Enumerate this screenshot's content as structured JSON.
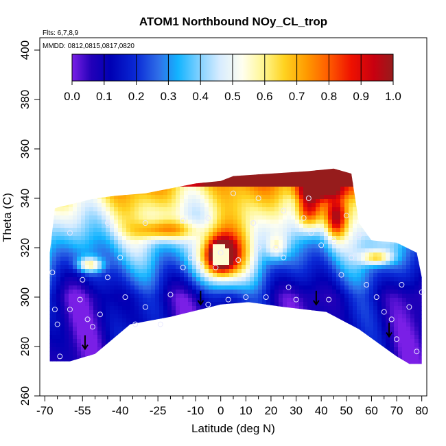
{
  "chart_data": {
    "type": "heatmap",
    "title": "ATOM1 Northbound NOy_CL_trop",
    "flights_text": "Flts: 6,7,8,9",
    "dates_text": "MMDD: 0812,0815,0817,0820",
    "xlabel": "Latitude (deg N)",
    "ylabel": "Theta (C)",
    "xlim": [
      -72,
      82
    ],
    "ylim": [
      260,
      405
    ],
    "x_ticks": [
      -70,
      -55,
      -40,
      -25,
      -10,
      0,
      10,
      20,
      30,
      40,
      50,
      60,
      70,
      80
    ],
    "x_minor_ticks": [
      -65,
      -60,
      -50,
      -45,
      -35,
      -30,
      -20,
      -15,
      -5,
      5,
      15,
      25,
      35,
      45,
      55,
      65,
      75
    ],
    "y_ticks": [
      260,
      280,
      300,
      320,
      340,
      360,
      380,
      400
    ],
    "colorbar": {
      "min": 0.0,
      "max": 1.0,
      "labels": [
        "0.0",
        "0.1",
        "0.2",
        "0.3",
        "0.4",
        "0.5",
        "0.6",
        "0.7",
        "0.8",
        "0.9",
        "1.0"
      ],
      "stops": [
        [
          0.0,
          "#7a1fe6"
        ],
        [
          0.06,
          "#2200b8"
        ],
        [
          0.12,
          "#0000b4"
        ],
        [
          0.2,
          "#0a2ad6"
        ],
        [
          0.27,
          "#2f6fe8"
        ],
        [
          0.33,
          "#13b4ff"
        ],
        [
          0.4,
          "#86d2ff"
        ],
        [
          0.46,
          "#d7ecff"
        ],
        [
          0.53,
          "#fffff0"
        ],
        [
          0.6,
          "#fff58a"
        ],
        [
          0.66,
          "#ffd321"
        ],
        [
          0.73,
          "#ff9a00"
        ],
        [
          0.8,
          "#ff5a00"
        ],
        [
          0.87,
          "#ee1100"
        ],
        [
          0.94,
          "#c80010"
        ],
        [
          1.0,
          "#961c1c"
        ]
      ]
    },
    "lower_boundary": [
      [
        -68,
        274
      ],
      [
        -60,
        274
      ],
      [
        -50,
        277
      ],
      [
        -43,
        283
      ],
      [
        -36,
        289
      ],
      [
        -20,
        292
      ],
      [
        -12,
        294
      ],
      [
        0,
        297
      ],
      [
        11,
        298
      ],
      [
        25,
        296
      ],
      [
        42,
        294
      ],
      [
        55,
        287
      ],
      [
        70,
        276
      ],
      [
        75,
        273
      ],
      [
        80,
        273
      ]
    ],
    "arrows": [
      {
        "lat": -54,
        "theta": 279
      },
      {
        "lat": -8,
        "theta": 297
      },
      {
        "lat": 38,
        "theta": 297
      },
      {
        "lat": 67,
        "theta": 284
      }
    ],
    "sample_points": [
      [
        -66,
        295
      ],
      [
        -65,
        289
      ],
      [
        -67,
        310
      ],
      [
        -64,
        276
      ],
      [
        -60,
        295
      ],
      [
        -56,
        299
      ],
      [
        -55,
        307
      ],
      [
        -53,
        291
      ],
      [
        -51,
        288
      ],
      [
        -48,
        293
      ],
      [
        -45,
        308
      ],
      [
        -40,
        316
      ],
      [
        -38,
        300
      ],
      [
        -34,
        289
      ],
      [
        -30,
        296
      ],
      [
        -24,
        289
      ],
      [
        -20,
        301
      ],
      [
        -15,
        312
      ],
      [
        -12,
        316
      ],
      [
        -8,
        313
      ],
      [
        -5,
        297
      ],
      [
        -2,
        312
      ],
      [
        0,
        318
      ],
      [
        3,
        299
      ],
      [
        7,
        315
      ],
      [
        10,
        300
      ],
      [
        13,
        330
      ],
      [
        15,
        320
      ],
      [
        18,
        300
      ],
      [
        22,
        320
      ],
      [
        25,
        316
      ],
      [
        27,
        304
      ],
      [
        30,
        299
      ],
      [
        33,
        332
      ],
      [
        36,
        326
      ],
      [
        40,
        321
      ],
      [
        43,
        299
      ],
      [
        45,
        323
      ],
      [
        48,
        309
      ],
      [
        52,
        316
      ],
      [
        55,
        325
      ],
      [
        58,
        305
      ],
      [
        62,
        300
      ],
      [
        65,
        294
      ],
      [
        68,
        291
      ],
      [
        70,
        283
      ],
      [
        72,
        305
      ],
      [
        75,
        296
      ],
      [
        78,
        278
      ],
      [
        80,
        302
      ],
      [
        -60,
        326
      ],
      [
        -45,
        330
      ],
      [
        -30,
        330
      ],
      [
        -15,
        331
      ],
      [
        -5,
        332
      ],
      [
        5,
        342
      ],
      [
        15,
        340
      ],
      [
        25,
        335
      ],
      [
        35,
        340
      ],
      [
        50,
        333
      ]
    ],
    "anomalies": [
      {
        "lat": 0,
        "theta": 316,
        "sx": 10,
        "sy": 12,
        "amp": 0.6
      },
      {
        "lat": 0,
        "theta": 317,
        "sx": 5,
        "sy": 6,
        "amp": 0.5
      },
      {
        "lat": -22,
        "theta": 327,
        "sx": 12,
        "sy": 4,
        "amp": 0.3
      },
      {
        "lat": -52,
        "theta": 313,
        "sx": 5,
        "sy": 3,
        "amp": 0.35
      },
      {
        "lat": 35,
        "theta": 336,
        "sx": 5,
        "sy": 9,
        "amp": 0.45
      },
      {
        "lat": 46,
        "theta": 332,
        "sx": 4,
        "sy": 8,
        "amp": 0.4
      },
      {
        "lat": 40,
        "theta": 344,
        "sx": 10,
        "sy": 4,
        "amp": 0.45
      },
      {
        "lat": 22,
        "theta": 320,
        "sx": 4,
        "sy": 5,
        "amp": 0.2
      },
      {
        "lat": 62,
        "theta": 316,
        "sx": 6,
        "sy": 3,
        "amp": 0.35
      }
    ]
  }
}
